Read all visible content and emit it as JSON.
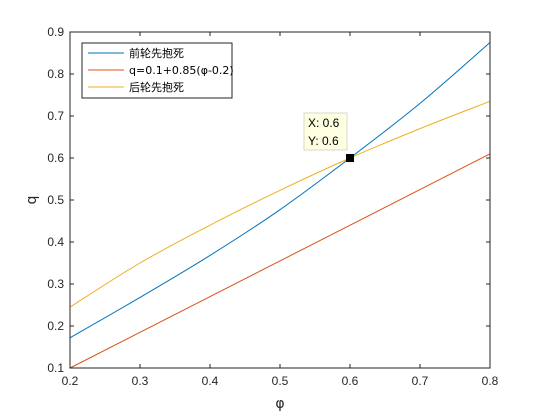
{
  "chart_data": {
    "type": "line",
    "xlabel": "φ",
    "ylabel": "q",
    "xlim": [
      0.2,
      0.8
    ],
    "ylim": [
      0.1,
      0.9
    ],
    "xticks": [
      "0.2",
      "0.3",
      "0.4",
      "0.5",
      "0.6",
      "0.7",
      "0.8"
    ],
    "yticks": [
      "0.1",
      "0.2",
      "0.3",
      "0.4",
      "0.5",
      "0.6",
      "0.7",
      "0.8",
      "0.9"
    ],
    "grid": false,
    "legend_position": "top-left",
    "series": [
      {
        "name": "前轮先抱死",
        "color": "#0072BD",
        "x": [
          0.2,
          0.3,
          0.4,
          0.5,
          0.6,
          0.7,
          0.8
        ],
        "y": [
          0.172,
          0.268,
          0.368,
          0.477,
          0.6,
          0.73,
          0.875
        ]
      },
      {
        "name": "q=0.1+0.85(φ-0.2)",
        "color": "#D95319",
        "x": [
          0.2,
          0.8
        ],
        "y": [
          0.1,
          0.61
        ]
      },
      {
        "name": "后轮先抱死",
        "color": "#EDB120",
        "x": [
          0.2,
          0.3,
          0.4,
          0.5,
          0.6,
          0.7,
          0.8
        ],
        "y": [
          0.245,
          0.35,
          0.44,
          0.523,
          0.6,
          0.67,
          0.735
        ]
      }
    ],
    "datatip": {
      "x": 0.6,
      "y": 0.6,
      "x_text": "X: 0.6",
      "y_text": "Y: 0.6"
    }
  }
}
